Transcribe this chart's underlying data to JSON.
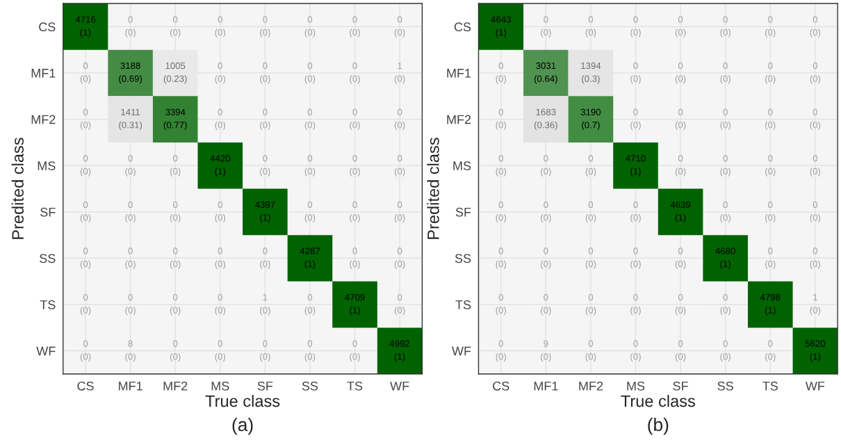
{
  "chart_data": [
    {
      "type": "heatmap",
      "xlabel": "True class",
      "ylabel": "Predited class",
      "grid": true,
      "data_labels": true,
      "categories": [
        "CS",
        "MF1",
        "MF2",
        "MS",
        "SF",
        "SS",
        "TS",
        "WF"
      ],
      "y_categories": [
        "CS",
        "MF1",
        "MF2",
        "MS",
        "SF",
        "SS",
        "TS",
        "WF"
      ],
      "cells": [
        [
          4716,
          0,
          0,
          0,
          0,
          0,
          0,
          0
        ],
        [
          0,
          3188,
          1005,
          0,
          0,
          0,
          0,
          1
        ],
        [
          0,
          1411,
          3394,
          0,
          0,
          0,
          0,
          0
        ],
        [
          0,
          0,
          0,
          4420,
          0,
          0,
          0,
          0
        ],
        [
          0,
          0,
          0,
          0,
          4397,
          0,
          0,
          0
        ],
        [
          0,
          0,
          0,
          0,
          0,
          4287,
          0,
          0
        ],
        [
          0,
          0,
          0,
          0,
          1,
          0,
          4709,
          0
        ],
        [
          0,
          8,
          0,
          0,
          0,
          0,
          0,
          4992
        ]
      ],
      "annotations": [
        "(1)",
        "(0)",
        "(0)",
        "(0)",
        "(0)",
        "(0)",
        "(0)",
        "(0)",
        "(0)",
        "(0.69)",
        "(0.23)",
        "(0)",
        "(0)",
        "(0)",
        "(0)",
        "(0)",
        "(0)",
        "(0.31)",
        "(0.77)",
        "(0)",
        "(0)",
        "(0)",
        "(0)",
        "(0)",
        "(0)",
        "(0)",
        "(0)",
        "(1)",
        "(0)",
        "(0)",
        "(0)",
        "(0)",
        "(0)",
        "(0)",
        "(0)",
        "(0)",
        "(1)",
        "(0)",
        "(0)",
        "(0)",
        "(0)",
        "(0)",
        "(0)",
        "(0)",
        "(0)",
        "(1)",
        "(0)",
        "(0)",
        "(0)",
        "(0)",
        "(0)",
        "(0)",
        "(0)",
        "(0)",
        "(1)",
        "(0)",
        "(0)",
        "(0)",
        "(0)",
        "(0)",
        "(0)",
        "(0)",
        "(0)",
        "(1)",
        "(a)"
      ]
    },
    {
      "type": "heatmap",
      "xlabel": "True class",
      "ylabel": "Predited class",
      "grid": true,
      "data_labels": true,
      "categories": [
        "CS",
        "MF1",
        "MF2",
        "MS",
        "SF",
        "SS",
        "TS",
        "WF"
      ],
      "y_categories": [
        "CS",
        "MF1",
        "MF2",
        "MS",
        "SF",
        "SS",
        "TS",
        "WF"
      ],
      "cells": [
        [
          4643,
          0,
          0,
          0,
          0,
          0,
          0,
          0
        ],
        [
          0,
          3031,
          1394,
          0,
          0,
          0,
          0,
          0
        ],
        [
          0,
          1683,
          3190,
          0,
          0,
          0,
          0,
          0
        ],
        [
          0,
          0,
          0,
          4710,
          0,
          0,
          0,
          0
        ],
        [
          0,
          0,
          0,
          0,
          4639,
          0,
          0,
          0
        ],
        [
          0,
          0,
          0,
          0,
          0,
          4680,
          0,
          0
        ],
        [
          0,
          0,
          0,
          0,
          0,
          0,
          4798,
          1
        ],
        [
          0,
          9,
          0,
          0,
          0,
          0,
          0,
          5620
        ]
      ],
      "annotations": [
        "(1)",
        "(0)",
        "(0)",
        "(0)",
        "(0)",
        "(0)",
        "(0)",
        "(0)",
        "(0)",
        "(0.64)",
        "(0.3)",
        "(0)",
        "(0)",
        "(0)",
        "(0)",
        "(0)",
        "(0)",
        "(0.36)",
        "(0.7)",
        "(0)",
        "(0)",
        "(0)",
        "(0)",
        "(0)",
        "(0)",
        "(0)",
        "(0)",
        "(1)",
        "(0)",
        "(0)",
        "(0)",
        "(0)",
        "(0)",
        "(0)",
        "(0)",
        "(0)",
        "(1)",
        "(0)",
        "(0)",
        "(0)",
        "(0)",
        "(0)",
        "(0)",
        "(0)",
        "(0)",
        "(1)",
        "(0)",
        "(0)",
        "(0)",
        "(0)",
        "(0)",
        "(0)",
        "(0)",
        "(0)",
        "(1)",
        "(0)",
        "(0)",
        "(0)",
        "(0)",
        "(0)",
        "(0)",
        "(0)",
        "(0)",
        "(1)",
        "(b)"
      ]
    }
  ]
}
